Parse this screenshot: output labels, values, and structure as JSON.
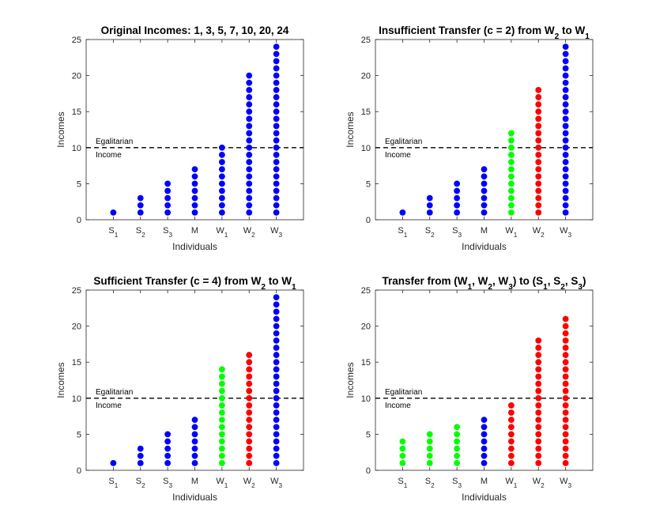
{
  "colors": {
    "blue": "#0000ff",
    "red": "#ff0000",
    "green": "#00ff00",
    "axis": "#262626"
  },
  "chart_data": [
    {
      "type": "scatter",
      "title": "Original Incomes: 1, 3, 5, 7, 10, 20, 24",
      "xlabel": "Individuals",
      "ylabel": "Incomes",
      "ylim": [
        0,
        25
      ],
      "yticks": [
        "0",
        "5",
        "10",
        "15",
        "20",
        "25"
      ],
      "categories": [
        {
          "base": "S",
          "sub": "1"
        },
        {
          "base": "S",
          "sub": "2"
        },
        {
          "base": "S",
          "sub": "3"
        },
        {
          "base": "M",
          "sub": ""
        },
        {
          "base": "W",
          "sub": "1"
        },
        {
          "base": "W",
          "sub": "2"
        },
        {
          "base": "W",
          "sub": "3"
        }
      ],
      "values": [
        1,
        3,
        5,
        7,
        10,
        20,
        24
      ],
      "point_colors": [
        "blue",
        "blue",
        "blue",
        "blue",
        "blue",
        "blue",
        "blue"
      ],
      "reference_line": {
        "y": 10,
        "label_line1": "Egalitarian",
        "label_line2": "Income"
      }
    },
    {
      "type": "scatter",
      "title_parts": [
        "Insufficient Transfer (c = 2) from W",
        "2",
        " to W",
        "1"
      ],
      "xlabel": "Individuals",
      "ylabel": "Incomes",
      "ylim": [
        0,
        25
      ],
      "yticks": [
        "0",
        "5",
        "10",
        "15",
        "20",
        "25"
      ],
      "categories": [
        {
          "base": "S",
          "sub": "1"
        },
        {
          "base": "S",
          "sub": "2"
        },
        {
          "base": "S",
          "sub": "3"
        },
        {
          "base": "M",
          "sub": ""
        },
        {
          "base": "W",
          "sub": "1"
        },
        {
          "base": "W",
          "sub": "2"
        },
        {
          "base": "W",
          "sub": "3"
        }
      ],
      "values": [
        1,
        3,
        5,
        7,
        12,
        18,
        24
      ],
      "point_colors": [
        "blue",
        "blue",
        "blue",
        "blue",
        "green",
        "red",
        "blue"
      ],
      "reference_line": {
        "y": 10,
        "label_line1": "Egalitarian",
        "label_line2": "Income"
      }
    },
    {
      "type": "scatter",
      "title_parts": [
        "Sufficient Transfer (c = 4) from W",
        "2",
        " to W",
        "1"
      ],
      "xlabel": "Individuals",
      "ylabel": "Incomes",
      "ylim": [
        0,
        25
      ],
      "yticks": [
        "0",
        "5",
        "10",
        "15",
        "20",
        "25"
      ],
      "categories": [
        {
          "base": "S",
          "sub": "1"
        },
        {
          "base": "S",
          "sub": "2"
        },
        {
          "base": "S",
          "sub": "3"
        },
        {
          "base": "M",
          "sub": ""
        },
        {
          "base": "W",
          "sub": "1"
        },
        {
          "base": "W",
          "sub": "2"
        },
        {
          "base": "W",
          "sub": "3"
        }
      ],
      "values": [
        1,
        3,
        5,
        7,
        14,
        16,
        24
      ],
      "point_colors": [
        "blue",
        "blue",
        "blue",
        "blue",
        "green",
        "red",
        "blue"
      ],
      "reference_line": {
        "y": 10,
        "label_line1": "Egalitarian",
        "label_line2": "Income"
      }
    },
    {
      "type": "scatter",
      "title_parts": [
        "Transfer from (W",
        "1",
        ", W",
        "2",
        ", W",
        "3",
        ") to (S",
        "1",
        ", S",
        "2",
        ", S",
        "3",
        ")"
      ],
      "xlabel": "Individuals",
      "ylabel": "Incomes",
      "ylim": [
        0,
        25
      ],
      "yticks": [
        "0",
        "5",
        "10",
        "15",
        "20",
        "25"
      ],
      "categories": [
        {
          "base": "S",
          "sub": "1"
        },
        {
          "base": "S",
          "sub": "2"
        },
        {
          "base": "S",
          "sub": "3"
        },
        {
          "base": "M",
          "sub": ""
        },
        {
          "base": "W",
          "sub": "1"
        },
        {
          "base": "W",
          "sub": "2"
        },
        {
          "base": "W",
          "sub": "3"
        }
      ],
      "values": [
        4,
        5,
        6,
        7,
        9,
        18,
        21
      ],
      "point_colors": [
        "green",
        "green",
        "green",
        "blue",
        "red",
        "red",
        "red"
      ],
      "reference_line": {
        "y": 10,
        "label_line1": "Egalitarian",
        "label_line2": "Income"
      }
    }
  ]
}
